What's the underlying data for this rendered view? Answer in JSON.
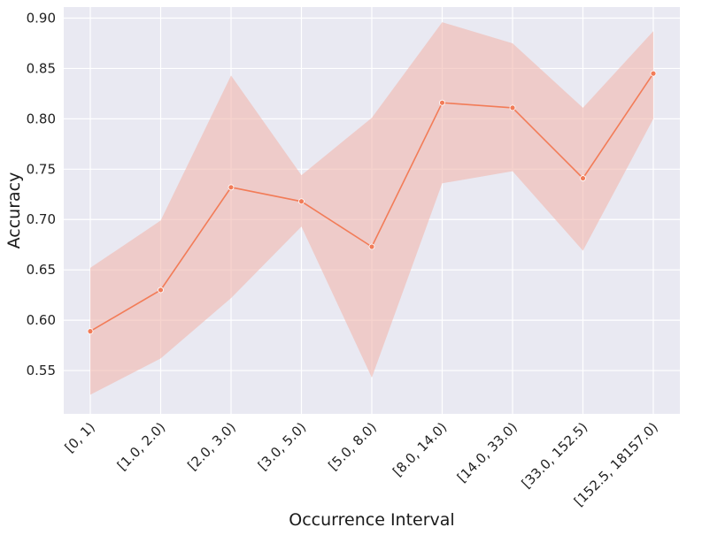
{
  "chart_data": {
    "type": "line",
    "title": "",
    "xlabel": "Occurrence Interval",
    "ylabel": "Accuracy",
    "categories": [
      "[0, 1)",
      "[1.0, 2.0)",
      "[2.0, 3.0)",
      "[3.0, 5.0)",
      "[5.0, 8.0)",
      "[8.0, 14.0)",
      "[14.0, 33.0)",
      "[33.0, 152.5)",
      "[152.5, 18157.0)"
    ],
    "yticks": [
      "0.55",
      "0.60",
      "0.65",
      "0.70",
      "0.75",
      "0.80",
      "0.85",
      "0.90"
    ],
    "ylim": [
      0.507,
      0.911
    ],
    "grid": true,
    "series": [
      {
        "values": [
          0.589,
          0.63,
          0.732,
          0.718,
          0.673,
          0.816,
          0.811,
          0.741,
          0.845
        ],
        "lower": [
          0.526,
          0.562,
          0.622,
          0.693,
          0.543,
          0.736,
          0.748,
          0.669,
          0.8
        ],
        "upper": [
          0.652,
          0.699,
          0.843,
          0.744,
          0.801,
          0.896,
          0.875,
          0.811,
          0.887
        ]
      }
    ],
    "colors": {
      "line": "#f27c58",
      "band": "#f2b8ad",
      "background": "#e9e9f2",
      "grid": "#ffffff"
    }
  }
}
